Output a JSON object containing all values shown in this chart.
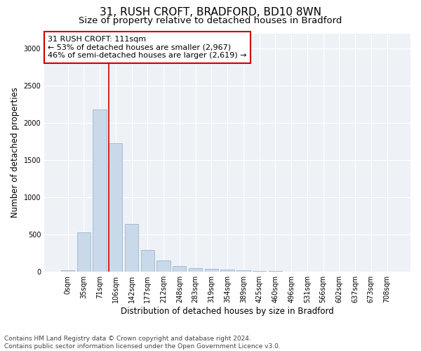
{
  "title_line1": "31, RUSH CROFT, BRADFORD, BD10 8WN",
  "title_line2": "Size of property relative to detached houses in Bradford",
  "xlabel": "Distribution of detached houses by size in Bradford",
  "ylabel": "Number of detached properties",
  "footnote": "Contains HM Land Registry data © Crown copyright and database right 2024.\nContains public sector information licensed under the Open Government Licence v3.0.",
  "bar_labels": [
    "0sqm",
    "35sqm",
    "71sqm",
    "106sqm",
    "142sqm",
    "177sqm",
    "212sqm",
    "248sqm",
    "283sqm",
    "319sqm",
    "354sqm",
    "389sqm",
    "425sqm",
    "460sqm",
    "496sqm",
    "531sqm",
    "566sqm",
    "602sqm",
    "637sqm",
    "673sqm",
    "708sqm"
  ],
  "bar_values": [
    25,
    525,
    2175,
    1725,
    640,
    290,
    155,
    80,
    45,
    35,
    30,
    20,
    15,
    10,
    5,
    0,
    0,
    0,
    0,
    0,
    0
  ],
  "bar_color": "#c9d9ea",
  "bar_edge_color": "#8baec8",
  "vline_x_index": 3,
  "vline_color": "#cc0000",
  "annotation_text": "31 RUSH CROFT: 111sqm\n← 53% of detached houses are smaller (2,967)\n46% of semi-detached houses are larger (2,619) →",
  "annotation_box_color": "#ffffff",
  "annotation_box_edge": "#cc0000",
  "ylim": [
    0,
    3200
  ],
  "yticks": [
    0,
    500,
    1000,
    1500,
    2000,
    2500,
    3000
  ],
  "plot_bg_color": "#eef2f7",
  "title_fontsize": 11,
  "subtitle_fontsize": 9.5,
  "tick_fontsize": 7,
  "label_fontsize": 8.5,
  "annotation_fontsize": 8,
  "footnote_fontsize": 6.5
}
